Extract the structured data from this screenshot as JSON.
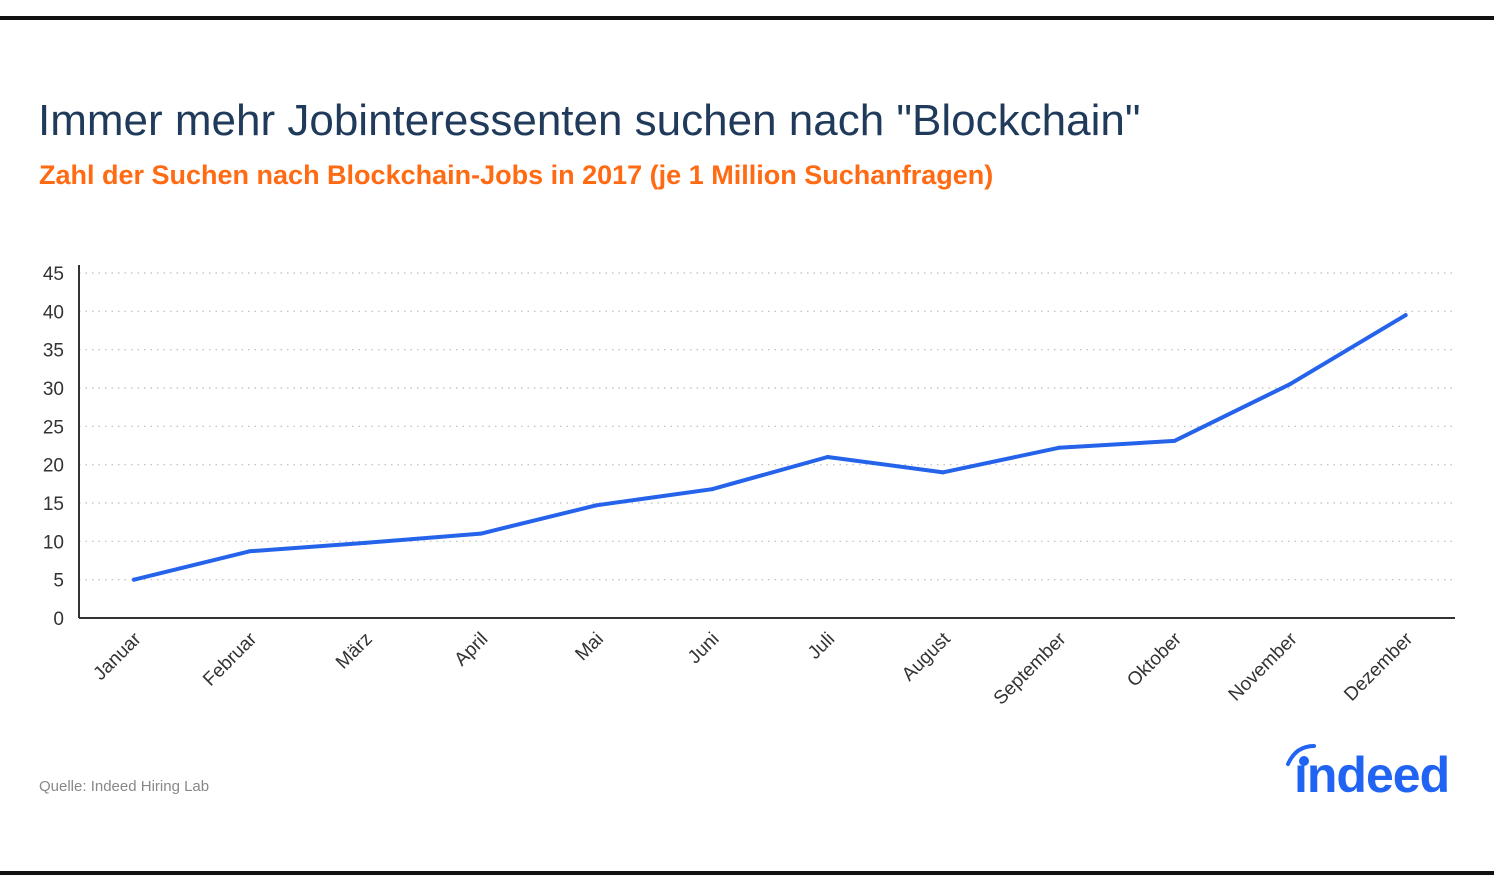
{
  "chart_data": {
    "type": "line",
    "title": "Immer mehr Jobinteressenten suchen nach \"Blockchain\"",
    "subtitle": "Zahl der Suchen nach Blockchain-Jobs in 2017 (je 1 Million Suchanfragen)",
    "categories": [
      "Januar",
      "Februar",
      "März",
      "April",
      "Mai",
      "Juni",
      "Juli",
      "August",
      "September",
      "Oktober",
      "November",
      "Dezember"
    ],
    "values": [
      5,
      8.7,
      9.8,
      11.0,
      14.7,
      16.8,
      21.0,
      19.0,
      22.2,
      23.1,
      30.5,
      39.5
    ],
    "yticks": [
      0,
      5,
      10,
      15,
      20,
      25,
      30,
      35,
      40,
      45
    ],
    "ylim": [
      0,
      45
    ],
    "grid": true,
    "line_color": "#2563eb",
    "xlabel": "",
    "ylabel": ""
  },
  "source": "Quelle: Indeed Hiring Lab",
  "logo": {
    "text": "indeed",
    "color": "#2164f3"
  },
  "colors": {
    "title": "#1f3a5a",
    "subtitle": "#ff6a13"
  }
}
